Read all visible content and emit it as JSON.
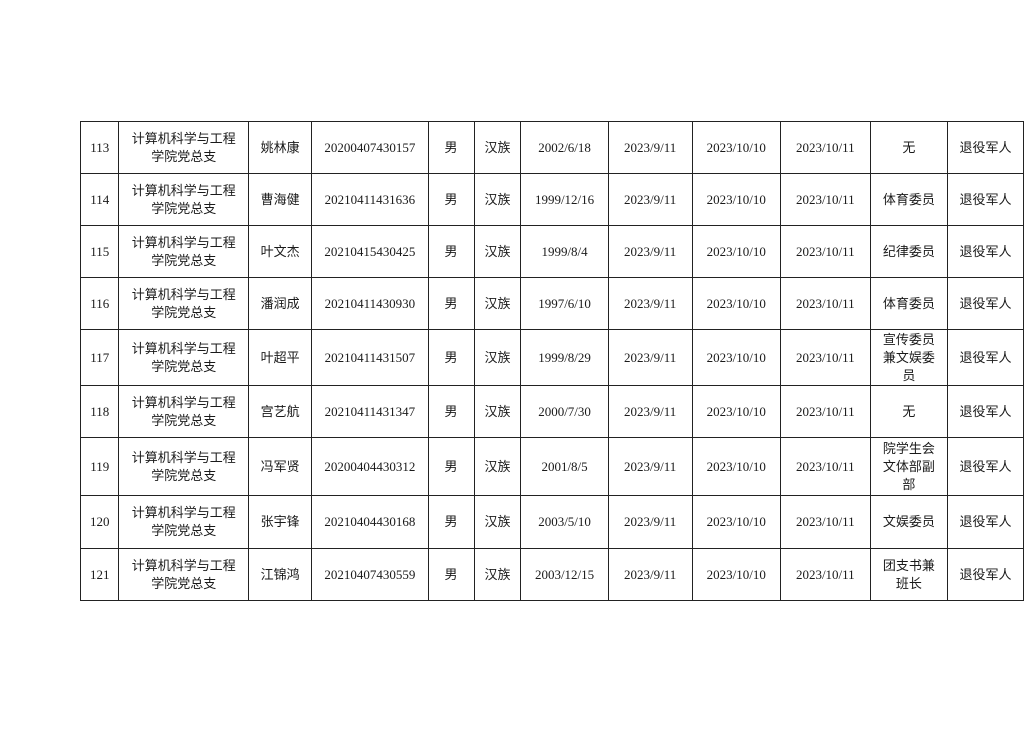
{
  "table": {
    "rows": [
      [
        "113",
        "计算机科学与工程学院党总支",
        "姚林康",
        "20200407430157",
        "男",
        "汉族",
        "2002/6/18",
        "2023/9/11",
        "2023/10/10",
        "2023/10/11",
        "无",
        "退役军人"
      ],
      [
        "114",
        "计算机科学与工程学院党总支",
        "曹海健",
        "20210411431636",
        "男",
        "汉族",
        "1999/12/16",
        "2023/9/11",
        "2023/10/10",
        "2023/10/11",
        "体育委员",
        "退役军人"
      ],
      [
        "115",
        "计算机科学与工程学院党总支",
        "叶文杰",
        "20210415430425",
        "男",
        "汉族",
        "1999/8/4",
        "2023/9/11",
        "2023/10/10",
        "2023/10/11",
        "纪律委员",
        "退役军人"
      ],
      [
        "116",
        "计算机科学与工程学院党总支",
        "潘润成",
        "20210411430930",
        "男",
        "汉族",
        "1997/6/10",
        "2023/9/11",
        "2023/10/10",
        "2023/10/11",
        "体育委员",
        "退役军人"
      ],
      [
        "117",
        "计算机科学与工程学院党总支",
        "叶超平",
        "20210411431507",
        "男",
        "汉族",
        "1999/8/29",
        "2023/9/11",
        "2023/10/10",
        "2023/10/11",
        "宣传委员兼文娱委员",
        "退役军人"
      ],
      [
        "118",
        "计算机科学与工程学院党总支",
        "宫艺航",
        "20210411431347",
        "男",
        "汉族",
        "2000/7/30",
        "2023/9/11",
        "2023/10/10",
        "2023/10/11",
        "无",
        "退役军人"
      ],
      [
        "119",
        "计算机科学与工程学院党总支",
        "冯军贤",
        "20200404430312",
        "男",
        "汉族",
        "2001/8/5",
        "2023/9/11",
        "2023/10/10",
        "2023/10/11",
        "院学生会文体部副部",
        "退役军人"
      ],
      [
        "120",
        "计算机科学与工程学院党总支",
        "张宇锋",
        "20210404430168",
        "男",
        "汉族",
        "2003/5/10",
        "2023/9/11",
        "2023/10/10",
        "2023/10/11",
        "文娱委员",
        "退役军人"
      ],
      [
        "121",
        "计算机科学与工程学院党总支",
        "江锦鸿",
        "20210407430559",
        "男",
        "汉族",
        "2003/12/15",
        "2023/9/11",
        "2023/10/10",
        "2023/10/11",
        "团支书兼班长",
        "退役军人"
      ]
    ]
  }
}
